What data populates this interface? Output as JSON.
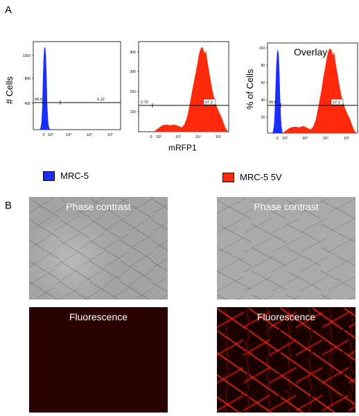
{
  "panelA": {
    "letter": "A"
  },
  "panelB": {
    "letter": "B"
  },
  "histograms": {
    "y_label_left": "# Cells",
    "y_label_right": "% of Cells",
    "x_label": "mRFP1",
    "overlay_label": "Overlay",
    "colors": {
      "mrc5": "#1a2eff",
      "mrc5_5v": "#ff2a0c"
    }
  },
  "legend": {
    "items": [
      {
        "label": "MRC-5",
        "color": "#1a2eff"
      },
      {
        "label": "MRC-5 5V",
        "color": "#ff2a0c"
      }
    ]
  },
  "microscopy": {
    "phase_label": "Phase contrast",
    "fluor_label": "Fluorescence"
  },
  "chart_data": [
    {
      "type": "area",
      "series": [
        {
          "name": "MRC-5",
          "color": "#1a2eff"
        }
      ],
      "yticks": [
        "400",
        "800",
        "1200"
      ],
      "xticks": [
        "0",
        "10²",
        "10³",
        "10⁴",
        "10⁵"
      ],
      "ylim": [
        0,
        1400
      ],
      "gate_left_pct": "99.9",
      "gate_right_pct": "0.12"
    },
    {
      "type": "area",
      "series": [
        {
          "name": "MRC-5 5V",
          "color": "#ff2a0c"
        }
      ],
      "yticks": [
        "100",
        "200",
        "300",
        "400"
      ],
      "xticks": [
        "0",
        "10²",
        "10³",
        "10⁴",
        "10⁵"
      ],
      "ylim": [
        0,
        450
      ],
      "gate_left_pct": "2.73",
      "gate_right_pct": "97.3"
    },
    {
      "type": "area",
      "series": [
        {
          "name": "MRC-5",
          "color": "#1a2eff"
        },
        {
          "name": "MRC-5 5V",
          "color": "#ff2a0c"
        }
      ],
      "yticks": [
        "20",
        "40",
        "60",
        "80",
        "100"
      ],
      "xticks": [
        "0",
        "10²",
        "10³",
        "10⁴",
        "10⁵"
      ],
      "ylim": [
        0,
        105
      ],
      "gate_left_pct": "99.9",
      "gate_right_pct": "97.3"
    }
  ]
}
